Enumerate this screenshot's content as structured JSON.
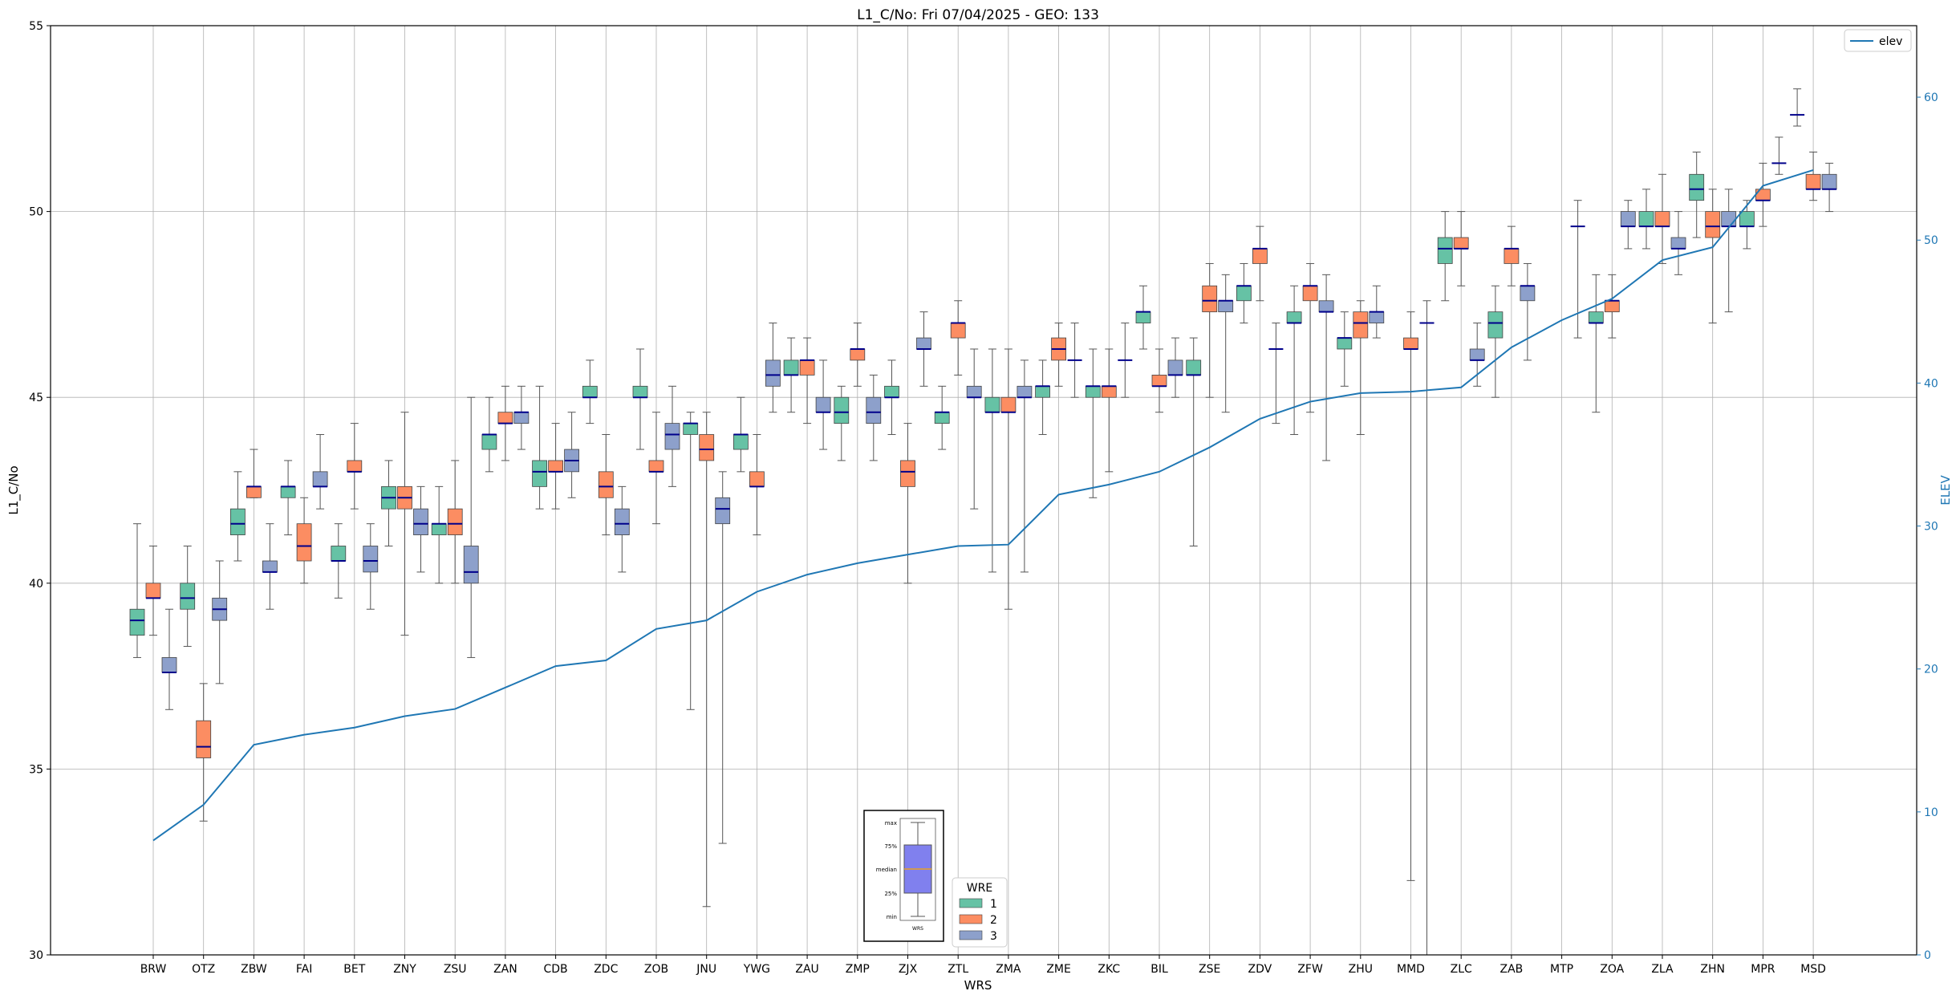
{
  "chart_data": {
    "type": "box",
    "title": "L1_C/No: Fri 07/04/2025 - GEO: 133",
    "xlabel": "WRS",
    "ylabel": "L1_C/No",
    "y2label": "ELEV",
    "ylim": [
      30,
      55
    ],
    "y2lim": [
      0,
      65
    ],
    "yticks": [
      30,
      35,
      40,
      45,
      50,
      55
    ],
    "y2ticks": [
      0,
      10,
      20,
      30,
      40,
      50,
      60
    ],
    "grid": true,
    "colors": {
      "1": "#66c2a5",
      "2": "#fc8d62",
      "3": "#8da0cb",
      "median": "#00008b",
      "elev": "#1f77b4",
      "whisker": "#555555"
    },
    "legend_wre": {
      "title": "WRE",
      "placement": "bottom-center",
      "items": [
        "1",
        "2",
        "3"
      ]
    },
    "legend_elev": {
      "label": "elev",
      "placement": "top-right"
    },
    "legend_key": {
      "labels": [
        "max",
        "75%",
        "median",
        "25%",
        "min",
        "WRS"
      ]
    },
    "categories": [
      "BRW",
      "OTZ",
      "ZBW",
      "FAI",
      "BET",
      "ZNY",
      "ZSU",
      "ZAN",
      "CDB",
      "ZDC",
      "ZOB",
      "JNU",
      "YWG",
      "ZAU",
      "ZMP",
      "ZJX",
      "ZTL",
      "ZMA",
      "ZME",
      "ZKC",
      "BIL",
      "ZSE",
      "ZDV",
      "ZFW",
      "ZHU",
      "MMD",
      "ZLC",
      "ZAB",
      "MTP",
      "ZOA",
      "ZLA",
      "ZHN",
      "MPR",
      "MSD"
    ],
    "elev": [
      8,
      10.5,
      14.7,
      15.4,
      15.9,
      16.7,
      17.2,
      18.7,
      20.2,
      20.6,
      22.8,
      23.4,
      25.4,
      26.6,
      27.4,
      28.0,
      28.6,
      28.7,
      32.2,
      32.9,
      33.8,
      35.5,
      37.5,
      38.7,
      39.3,
      39.4,
      39.7,
      42.5,
      44.4,
      45.9,
      48.6,
      49.5,
      53.8,
      54.9
    ],
    "boxes": [
      {
        "cat": "BRW",
        "wre": 1,
        "min": 38.0,
        "q1": 38.6,
        "median": 39.0,
        "q3": 39.3,
        "max": 41.6
      },
      {
        "cat": "BRW",
        "wre": 2,
        "min": 38.6,
        "q1": 39.6,
        "median": 39.6,
        "q3": 40.0,
        "max": 41.0
      },
      {
        "cat": "BRW",
        "wre": 3,
        "min": 36.6,
        "q1": 37.6,
        "median": 37.6,
        "q3": 38.0,
        "max": 39.3
      },
      {
        "cat": "OTZ",
        "wre": 1,
        "min": 38.3,
        "q1": 39.3,
        "median": 39.6,
        "q3": 40.0,
        "max": 41.0
      },
      {
        "cat": "OTZ",
        "wre": 2,
        "min": 33.6,
        "q1": 35.3,
        "median": 35.6,
        "q3": 36.3,
        "max": 37.3
      },
      {
        "cat": "OTZ",
        "wre": 3,
        "min": 37.3,
        "q1": 39.0,
        "median": 39.3,
        "q3": 39.6,
        "max": 40.6
      },
      {
        "cat": "ZBW",
        "wre": 1,
        "min": 40.6,
        "q1": 41.3,
        "median": 41.6,
        "q3": 42.0,
        "max": 43.0
      },
      {
        "cat": "ZBW",
        "wre": 2,
        "min": 42.3,
        "q1": 42.3,
        "median": 42.6,
        "q3": 42.6,
        "max": 43.6
      },
      {
        "cat": "ZBW",
        "wre": 3,
        "min": 39.3,
        "q1": 40.3,
        "median": 40.3,
        "q3": 40.6,
        "max": 41.6
      },
      {
        "cat": "FAI",
        "wre": 1,
        "min": 41.3,
        "q1": 42.3,
        "median": 42.6,
        "q3": 42.6,
        "max": 43.3
      },
      {
        "cat": "FAI",
        "wre": 2,
        "min": 40.0,
        "q1": 40.6,
        "median": 41.0,
        "q3": 41.6,
        "max": 42.3
      },
      {
        "cat": "FAI",
        "wre": 3,
        "min": 42.0,
        "q1": 42.6,
        "median": 42.6,
        "q3": 43.0,
        "max": 44.0
      },
      {
        "cat": "BET",
        "wre": 1,
        "min": 39.6,
        "q1": 40.6,
        "median": 40.6,
        "q3": 41.0,
        "max": 41.6
      },
      {
        "cat": "BET",
        "wre": 2,
        "min": 42.0,
        "q1": 43.0,
        "median": 43.0,
        "q3": 43.3,
        "max": 44.3
      },
      {
        "cat": "BET",
        "wre": 3,
        "min": 39.3,
        "q1": 40.3,
        "median": 40.6,
        "q3": 41.0,
        "max": 41.6
      },
      {
        "cat": "ZNY",
        "wre": 1,
        "min": 41.0,
        "q1": 42.0,
        "median": 42.3,
        "q3": 42.6,
        "max": 43.3
      },
      {
        "cat": "ZNY",
        "wre": 2,
        "min": 38.6,
        "q1": 42.0,
        "median": 42.3,
        "q3": 42.6,
        "max": 44.6
      },
      {
        "cat": "ZNY",
        "wre": 3,
        "min": 40.3,
        "q1": 41.3,
        "median": 41.6,
        "q3": 42.0,
        "max": 42.6
      },
      {
        "cat": "ZSU",
        "wre": 1,
        "min": 40.0,
        "q1": 41.3,
        "median": 41.6,
        "q3": 41.6,
        "max": 42.6
      },
      {
        "cat": "ZSU",
        "wre": 2,
        "min": 40.0,
        "q1": 41.3,
        "median": 41.6,
        "q3": 42.0,
        "max": 43.3
      },
      {
        "cat": "ZSU",
        "wre": 3,
        "min": 38.0,
        "q1": 40.0,
        "median": 40.3,
        "q3": 41.0,
        "max": 45.0
      },
      {
        "cat": "ZAN",
        "wre": 1,
        "min": 43.0,
        "q1": 43.6,
        "median": 44.0,
        "q3": 44.0,
        "max": 45.0
      },
      {
        "cat": "ZAN",
        "wre": 2,
        "min": 43.3,
        "q1": 44.3,
        "median": 44.3,
        "q3": 44.6,
        "max": 45.3
      },
      {
        "cat": "ZAN",
        "wre": 3,
        "min": 43.6,
        "q1": 44.3,
        "median": 44.6,
        "q3": 44.6,
        "max": 45.3
      },
      {
        "cat": "CDB",
        "wre": 1,
        "min": 42.0,
        "q1": 42.6,
        "median": 43.0,
        "q3": 43.3,
        "max": 45.3
      },
      {
        "cat": "CDB",
        "wre": 2,
        "min": 42.0,
        "q1": 43.0,
        "median": 43.0,
        "q3": 43.3,
        "max": 44.3
      },
      {
        "cat": "CDB",
        "wre": 3,
        "min": 42.3,
        "q1": 43.0,
        "median": 43.3,
        "q3": 43.6,
        "max": 44.6
      },
      {
        "cat": "ZDC",
        "wre": 1,
        "min": 44.3,
        "q1": 45.0,
        "median": 45.0,
        "q3": 45.3,
        "max": 46.0
      },
      {
        "cat": "ZDC",
        "wre": 2,
        "min": 41.3,
        "q1": 42.3,
        "median": 42.6,
        "q3": 43.0,
        "max": 44.0
      },
      {
        "cat": "ZDC",
        "wre": 3,
        "min": 40.3,
        "q1": 41.3,
        "median": 41.6,
        "q3": 42.0,
        "max": 42.6
      },
      {
        "cat": "ZOB",
        "wre": 1,
        "min": 43.6,
        "q1": 45.0,
        "median": 45.0,
        "q3": 45.3,
        "max": 46.3
      },
      {
        "cat": "ZOB",
        "wre": 2,
        "min": 41.6,
        "q1": 43.0,
        "median": 43.0,
        "q3": 43.3,
        "max": 44.6
      },
      {
        "cat": "ZOB",
        "wre": 3,
        "min": 42.6,
        "q1": 43.6,
        "median": 44.0,
        "q3": 44.3,
        "max": 45.3
      },
      {
        "cat": "JNU",
        "wre": 1,
        "min": 36.6,
        "q1": 44.0,
        "median": 44.3,
        "q3": 44.3,
        "max": 44.6
      },
      {
        "cat": "JNU",
        "wre": 2,
        "min": 31.3,
        "q1": 43.3,
        "median": 43.6,
        "q3": 44.0,
        "max": 44.6
      },
      {
        "cat": "JNU",
        "wre": 3,
        "min": 33.0,
        "q1": 41.6,
        "median": 42.0,
        "q3": 42.3,
        "max": 43.0
      },
      {
        "cat": "YWG",
        "wre": 1,
        "min": 43.0,
        "q1": 43.6,
        "median": 44.0,
        "q3": 44.0,
        "max": 45.0
      },
      {
        "cat": "YWG",
        "wre": 2,
        "min": 41.3,
        "q1": 42.6,
        "median": 42.6,
        "q3": 43.0,
        "max": 44.0
      },
      {
        "cat": "YWG",
        "wre": 3,
        "min": 44.6,
        "q1": 45.3,
        "median": 45.6,
        "q3": 46.0,
        "max": 47.0
      },
      {
        "cat": "ZAU",
        "wre": 1,
        "min": 44.6,
        "q1": 45.6,
        "median": 45.6,
        "q3": 46.0,
        "max": 46.6
      },
      {
        "cat": "ZAU",
        "wre": 2,
        "min": 44.3,
        "q1": 45.6,
        "median": 46.0,
        "q3": 46.0,
        "max": 46.6
      },
      {
        "cat": "ZAU",
        "wre": 3,
        "min": 43.6,
        "q1": 44.6,
        "median": 44.6,
        "q3": 45.0,
        "max": 46.0
      },
      {
        "cat": "ZMP",
        "wre": 1,
        "min": 43.3,
        "q1": 44.3,
        "median": 44.6,
        "q3": 45.0,
        "max": 45.3
      },
      {
        "cat": "ZMP",
        "wre": 2,
        "min": 45.3,
        "q1": 46.0,
        "median": 46.3,
        "q3": 46.3,
        "max": 47.0
      },
      {
        "cat": "ZMP",
        "wre": 3,
        "min": 43.3,
        "q1": 44.3,
        "median": 44.6,
        "q3": 45.0,
        "max": 45.6
      },
      {
        "cat": "ZJX",
        "wre": 1,
        "min": 44.0,
        "q1": 45.0,
        "median": 45.0,
        "q3": 45.3,
        "max": 46.0
      },
      {
        "cat": "ZJX",
        "wre": 2,
        "min": 40.0,
        "q1": 42.6,
        "median": 43.0,
        "q3": 43.3,
        "max": 44.3
      },
      {
        "cat": "ZJX",
        "wre": 3,
        "min": 45.3,
        "q1": 46.3,
        "median": 46.3,
        "q3": 46.6,
        "max": 47.3
      },
      {
        "cat": "ZTL",
        "wre": 1,
        "min": 43.6,
        "q1": 44.3,
        "median": 44.6,
        "q3": 44.6,
        "max": 45.3
      },
      {
        "cat": "ZTL",
        "wre": 2,
        "min": 45.6,
        "q1": 46.6,
        "median": 47.0,
        "q3": 47.0,
        "max": 47.6
      },
      {
        "cat": "ZTL",
        "wre": 3,
        "min": 42.0,
        "q1": 45.0,
        "median": 45.0,
        "q3": 45.3,
        "max": 46.3
      },
      {
        "cat": "ZMA",
        "wre": 1,
        "min": 40.3,
        "q1": 44.6,
        "median": 44.6,
        "q3": 45.0,
        "max": 46.3
      },
      {
        "cat": "ZMA",
        "wre": 2,
        "min": 39.3,
        "q1": 44.6,
        "median": 44.6,
        "q3": 45.0,
        "max": 46.3
      },
      {
        "cat": "ZMA",
        "wre": 3,
        "min": 40.3,
        "q1": 45.0,
        "median": 45.0,
        "q3": 45.3,
        "max": 46.0
      },
      {
        "cat": "ZME",
        "wre": 1,
        "min": 44.0,
        "q1": 45.0,
        "median": 45.3,
        "q3": 45.3,
        "max": 46.0
      },
      {
        "cat": "ZME",
        "wre": 2,
        "min": 45.3,
        "q1": 46.0,
        "median": 46.3,
        "q3": 46.6,
        "max": 47.0
      },
      {
        "cat": "ZME",
        "wre": 3,
        "min": 45.0,
        "q1": 46.0,
        "median": 46.0,
        "q3": 46.0,
        "max": 47.0
      },
      {
        "cat": "ZKC",
        "wre": 1,
        "min": 42.3,
        "q1": 45.0,
        "median": 45.3,
        "q3": 45.3,
        "max": 46.3
      },
      {
        "cat": "ZKC",
        "wre": 2,
        "min": 43.0,
        "q1": 45.0,
        "median": 45.3,
        "q3": 45.3,
        "max": 46.3
      },
      {
        "cat": "ZKC",
        "wre": 3,
        "min": 45.0,
        "q1": 46.0,
        "median": 46.0,
        "q3": 46.0,
        "max": 47.0
      },
      {
        "cat": "BIL",
        "wre": 1,
        "min": 46.3,
        "q1": 47.0,
        "median": 47.3,
        "q3": 47.3,
        "max": 48.0
      },
      {
        "cat": "BIL",
        "wre": 2,
        "min": 44.6,
        "q1": 45.3,
        "median": 45.3,
        "q3": 45.6,
        "max": 46.3
      },
      {
        "cat": "BIL",
        "wre": 3,
        "min": 45.0,
        "q1": 45.6,
        "median": 45.6,
        "q3": 46.0,
        "max": 46.6
      },
      {
        "cat": "ZSE",
        "wre": 1,
        "min": 41.0,
        "q1": 45.6,
        "median": 45.6,
        "q3": 46.0,
        "max": 46.6
      },
      {
        "cat": "ZSE",
        "wre": 2,
        "min": 45.0,
        "q1": 47.3,
        "median": 47.6,
        "q3": 48.0,
        "max": 48.6
      },
      {
        "cat": "ZSE",
        "wre": 3,
        "min": 44.6,
        "q1": 47.3,
        "median": 47.6,
        "q3": 47.6,
        "max": 48.3
      },
      {
        "cat": "ZDV",
        "wre": 1,
        "min": 47.0,
        "q1": 47.6,
        "median": 48.0,
        "q3": 48.0,
        "max": 48.6
      },
      {
        "cat": "ZDV",
        "wre": 2,
        "min": 47.6,
        "q1": 48.6,
        "median": 49.0,
        "q3": 49.0,
        "max": 49.6
      },
      {
        "cat": "ZDV",
        "wre": 3,
        "min": 44.3,
        "q1": 46.3,
        "median": 46.3,
        "q3": 46.3,
        "max": 47.0
      },
      {
        "cat": "ZFW",
        "wre": 1,
        "min": 44.0,
        "q1": 47.0,
        "median": 47.0,
        "q3": 47.3,
        "max": 48.0
      },
      {
        "cat": "ZFW",
        "wre": 2,
        "min": 44.6,
        "q1": 47.6,
        "median": 48.0,
        "q3": 48.0,
        "max": 48.6
      },
      {
        "cat": "ZFW",
        "wre": 3,
        "min": 43.3,
        "q1": 47.3,
        "median": 47.3,
        "q3": 47.6,
        "max": 48.3
      },
      {
        "cat": "ZHU",
        "wre": 1,
        "min": 45.3,
        "q1": 46.3,
        "median": 46.6,
        "q3": 46.6,
        "max": 47.3
      },
      {
        "cat": "ZHU",
        "wre": 2,
        "min": 44.0,
        "q1": 46.6,
        "median": 47.0,
        "q3": 47.3,
        "max": 47.6
      },
      {
        "cat": "ZHU",
        "wre": 3,
        "min": 46.6,
        "q1": 47.0,
        "median": 47.3,
        "q3": 47.3,
        "max": 48.0
      },
      {
        "cat": "MMD",
        "wre": 2,
        "min": 32.0,
        "q1": 46.3,
        "median": 46.3,
        "q3": 46.6,
        "max": 47.3
      },
      {
        "cat": "MMD",
        "wre": 3,
        "min": 30.0,
        "q1": 47.0,
        "median": 47.0,
        "q3": 47.0,
        "max": 47.6
      },
      {
        "cat": "ZLC",
        "wre": 1,
        "min": 47.6,
        "q1": 48.6,
        "median": 49.0,
        "q3": 49.3,
        "max": 50.0
      },
      {
        "cat": "ZLC",
        "wre": 2,
        "min": 48.0,
        "q1": 49.0,
        "median": 49.0,
        "q3": 49.3,
        "max": 50.0
      },
      {
        "cat": "ZLC",
        "wre": 3,
        "min": 45.3,
        "q1": 46.0,
        "median": 46.0,
        "q3": 46.3,
        "max": 47.0
      },
      {
        "cat": "ZAB",
        "wre": 1,
        "min": 45.0,
        "q1": 46.6,
        "median": 47.0,
        "q3": 47.3,
        "max": 48.0
      },
      {
        "cat": "ZAB",
        "wre": 2,
        "min": 48.0,
        "q1": 48.6,
        "median": 49.0,
        "q3": 49.0,
        "max": 49.6
      },
      {
        "cat": "ZAB",
        "wre": 3,
        "min": 46.0,
        "q1": 47.6,
        "median": 48.0,
        "q3": 48.0,
        "max": 48.6
      },
      {
        "cat": "MTP",
        "wre": 3,
        "min": 46.6,
        "q1": 49.6,
        "median": 49.6,
        "q3": 49.6,
        "max": 50.3
      },
      {
        "cat": "ZOA",
        "wre": 1,
        "min": 44.6,
        "q1": 47.0,
        "median": 47.0,
        "q3": 47.3,
        "max": 48.3
      },
      {
        "cat": "ZOA",
        "wre": 2,
        "min": 46.6,
        "q1": 47.3,
        "median": 47.6,
        "q3": 47.6,
        "max": 48.3
      },
      {
        "cat": "ZOA",
        "wre": 3,
        "min": 49.0,
        "q1": 49.6,
        "median": 49.6,
        "q3": 50.0,
        "max": 50.3
      },
      {
        "cat": "ZLA",
        "wre": 1,
        "min": 49.0,
        "q1": 49.6,
        "median": 49.6,
        "q3": 50.0,
        "max": 50.6
      },
      {
        "cat": "ZLA",
        "wre": 2,
        "min": 48.6,
        "q1": 49.6,
        "median": 49.6,
        "q3": 50.0,
        "max": 51.0
      },
      {
        "cat": "ZLA",
        "wre": 3,
        "min": 48.3,
        "q1": 49.0,
        "median": 49.0,
        "q3": 49.3,
        "max": 50.0
      },
      {
        "cat": "ZHN",
        "wre": 1,
        "min": 49.3,
        "q1": 50.3,
        "median": 50.6,
        "q3": 51.0,
        "max": 51.6
      },
      {
        "cat": "ZHN",
        "wre": 2,
        "min": 47.0,
        "q1": 49.3,
        "median": 49.6,
        "q3": 50.0,
        "max": 50.6
      },
      {
        "cat": "ZHN",
        "wre": 3,
        "min": 47.3,
        "q1": 49.6,
        "median": 49.6,
        "q3": 50.0,
        "max": 50.6
      },
      {
        "cat": "MPR",
        "wre": 1,
        "min": 49.0,
        "q1": 49.6,
        "median": 49.6,
        "q3": 50.0,
        "max": 50.3
      },
      {
        "cat": "MPR",
        "wre": 2,
        "min": 49.6,
        "q1": 50.3,
        "median": 50.3,
        "q3": 50.6,
        "max": 51.3
      },
      {
        "cat": "MPR",
        "wre": 3,
        "min": 51.0,
        "q1": 51.3,
        "median": 51.3,
        "q3": 51.3,
        "max": 52.0
      },
      {
        "cat": "MSD",
        "wre": 1,
        "min": 52.3,
        "q1": 52.6,
        "median": 52.6,
        "q3": 52.6,
        "max": 53.3
      },
      {
        "cat": "MSD",
        "wre": 2,
        "min": 50.3,
        "q1": 50.6,
        "median": 50.6,
        "q3": 51.0,
        "max": 51.6
      },
      {
        "cat": "MSD",
        "wre": 3,
        "min": 50.0,
        "q1": 50.6,
        "median": 50.6,
        "q3": 51.0,
        "max": 51.3
      }
    ]
  }
}
